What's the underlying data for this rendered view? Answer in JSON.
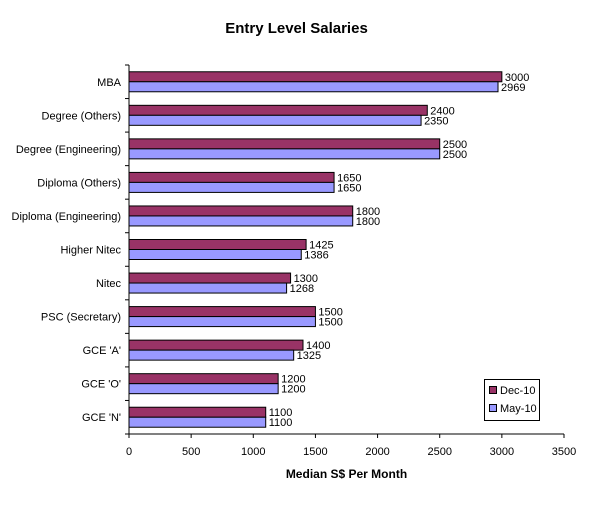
{
  "chart_data": {
    "type": "bar",
    "orientation": "horizontal",
    "title": "Entry Level Salaries",
    "xlabel": "Median S$ Per Month",
    "ylabel": "",
    "xlim": [
      0,
      3500
    ],
    "xticks": [
      0,
      500,
      1000,
      1500,
      2000,
      2500,
      3000,
      3500
    ],
    "grid": false,
    "legend_position": "bottom-right",
    "categories": [
      "MBA",
      "Degree (Others)",
      "Degree (Engineering)",
      "Diploma (Others)",
      "Diploma (Engineering)",
      "Higher Nitec",
      "Nitec",
      "PSC (Secretary)",
      "GCE 'A'",
      "GCE 'O'",
      "GCE 'N'"
    ],
    "series": [
      {
        "name": "Dec-10",
        "color": "#993366",
        "values": [
          3000,
          2400,
          2500,
          1650,
          1800,
          1425,
          1300,
          1500,
          1400,
          1200,
          1100
        ]
      },
      {
        "name": "May-10",
        "color": "#9999ff",
        "values": [
          2969,
          2350,
          2500,
          1650,
          1800,
          1386,
          1268,
          1500,
          1325,
          1200,
          1100
        ]
      }
    ]
  }
}
